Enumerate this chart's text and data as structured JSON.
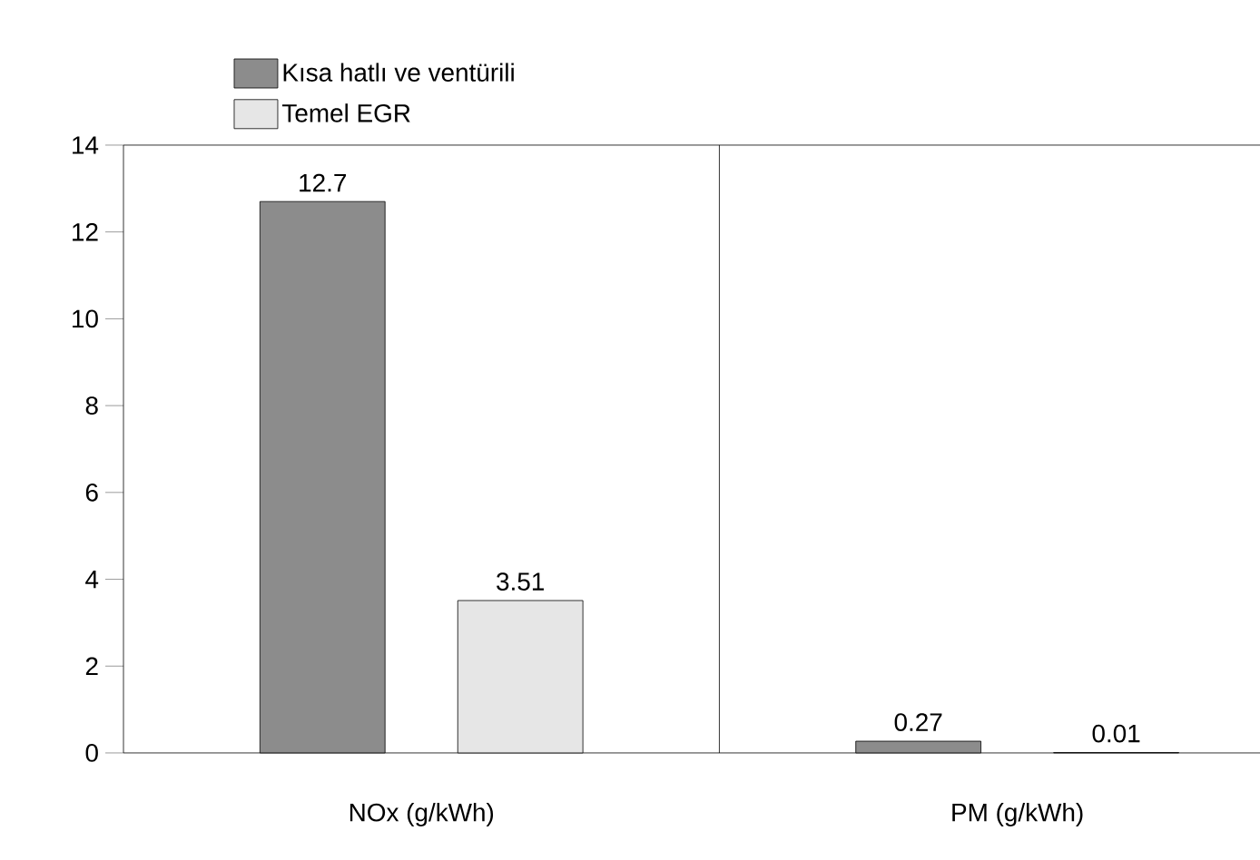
{
  "chart_data": {
    "type": "bar",
    "categories": [
      "NOx (g/kWh)",
      "PM (g/kWh)"
    ],
    "series": [
      {
        "name": "Kısa hatlı ve ventürili",
        "color": "#8c8c8c",
        "values": [
          12.7,
          0.27
        ]
      },
      {
        "name": "Temel EGR",
        "color": "#e6e6e6",
        "values": [
          3.51,
          0.01
        ]
      }
    ],
    "ylim": [
      0,
      14
    ],
    "yticks": [
      0,
      2,
      4,
      6,
      8,
      10,
      12,
      14
    ],
    "data_labels": true,
    "legend": "top left",
    "grid": false
  }
}
